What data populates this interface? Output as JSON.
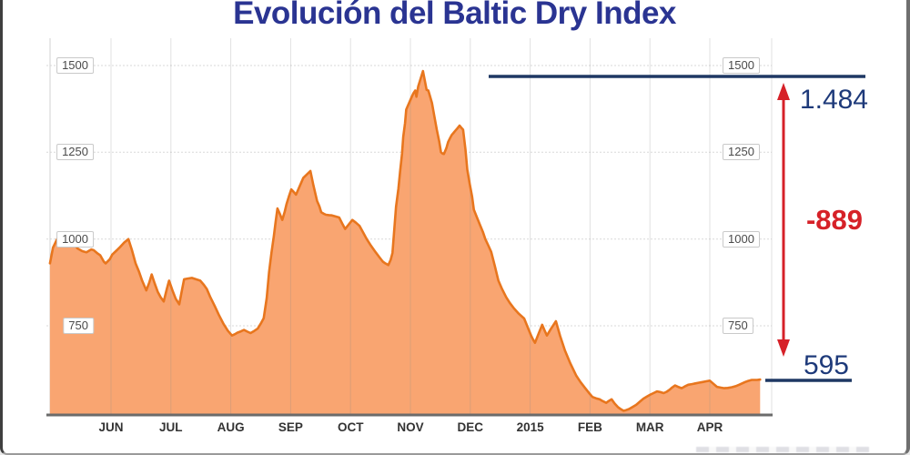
{
  "chart_data": {
    "type": "area",
    "title": "Evolución del Baltic Dry Index",
    "x_axis": {
      "labels": [
        "JUN",
        "JUL",
        "AUG",
        "SEP",
        "OCT",
        "NOV",
        "DEC",
        "2015",
        "FEB",
        "MAR",
        "APR"
      ]
    },
    "y_axis": {
      "ticks": [
        1500,
        1250,
        1000,
        750
      ],
      "range": [
        490,
        1570
      ],
      "tick_label_sides": "both"
    },
    "grid": true,
    "legend": "none",
    "series": [
      {
        "name": "Baltic Dry Index",
        "fill_color": "#F9A571",
        "line_color": "#E8761E",
        "points": [
          [
            -1.02,
            930
          ],
          [
            -0.97,
            975
          ],
          [
            -0.9,
            1000
          ],
          [
            -0.85,
            1012
          ],
          [
            -0.76,
            1008
          ],
          [
            -0.71,
            1005
          ],
          [
            -0.62,
            988
          ],
          [
            -0.56,
            973
          ],
          [
            -0.48,
            965
          ],
          [
            -0.41,
            962
          ],
          [
            -0.33,
            970
          ],
          [
            -0.29,
            968
          ],
          [
            -0.22,
            958
          ],
          [
            -0.18,
            953
          ],
          [
            -0.12,
            935
          ],
          [
            -0.09,
            930
          ],
          [
            -0.02,
            942
          ],
          [
            0.02,
            955
          ],
          [
            0.08,
            965
          ],
          [
            0.14,
            975
          ],
          [
            0.22,
            990
          ],
          [
            0.29,
            1000
          ],
          [
            0.35,
            968
          ],
          [
            0.41,
            930
          ],
          [
            0.47,
            905
          ],
          [
            0.52,
            880
          ],
          [
            0.59,
            852
          ],
          [
            0.64,
            875
          ],
          [
            0.68,
            898
          ],
          [
            0.73,
            872
          ],
          [
            0.78,
            848
          ],
          [
            0.83,
            832
          ],
          [
            0.88,
            820
          ],
          [
            0.93,
            855
          ],
          [
            0.97,
            880
          ],
          [
            1.03,
            850
          ],
          [
            1.08,
            828
          ],
          [
            1.14,
            812
          ],
          [
            1.18,
            848
          ],
          [
            1.22,
            884
          ],
          [
            1.28,
            886
          ],
          [
            1.35,
            888
          ],
          [
            1.42,
            884
          ],
          [
            1.49,
            880
          ],
          [
            1.55,
            868
          ],
          [
            1.6,
            856
          ],
          [
            1.66,
            832
          ],
          [
            1.73,
            808
          ],
          [
            1.8,
            782
          ],
          [
            1.88,
            755
          ],
          [
            1.95,
            736
          ],
          [
            2.02,
            722
          ],
          [
            2.07,
            726
          ],
          [
            2.11,
            730
          ],
          [
            2.17,
            734
          ],
          [
            2.22,
            738
          ],
          [
            2.28,
            733
          ],
          [
            2.33,
            729
          ],
          [
            2.39,
            735
          ],
          [
            2.45,
            742
          ],
          [
            2.5,
            756
          ],
          [
            2.55,
            772
          ],
          [
            2.6,
            830
          ],
          [
            2.64,
            905
          ],
          [
            2.68,
            960
          ],
          [
            2.72,
            1010
          ],
          [
            2.75,
            1050
          ],
          [
            2.78,
            1088
          ],
          [
            2.82,
            1072
          ],
          [
            2.86,
            1055
          ],
          [
            2.9,
            1078
          ],
          [
            2.93,
            1100
          ],
          [
            2.97,
            1122
          ],
          [
            3.01,
            1143
          ],
          [
            3.05,
            1136
          ],
          [
            3.09,
            1128
          ],
          [
            3.15,
            1152
          ],
          [
            3.21,
            1176
          ],
          [
            3.27,
            1186
          ],
          [
            3.33,
            1196
          ],
          [
            3.38,
            1155
          ],
          [
            3.44,
            1110
          ],
          [
            3.48,
            1094
          ],
          [
            3.51,
            1077
          ],
          [
            3.55,
            1073
          ],
          [
            3.59,
            1070
          ],
          [
            3.64,
            1069
          ],
          [
            3.69,
            1068
          ],
          [
            3.75,
            1065
          ],
          [
            3.81,
            1062
          ],
          [
            3.86,
            1045
          ],
          [
            3.91,
            1029
          ],
          [
            3.97,
            1042
          ],
          [
            4.03,
            1055
          ],
          [
            4.09,
            1047
          ],
          [
            4.15,
            1038
          ],
          [
            4.21,
            1019
          ],
          [
            4.27,
            1000
          ],
          [
            4.34,
            981
          ],
          [
            4.42,
            962
          ],
          [
            4.48,
            948
          ],
          [
            4.54,
            935
          ],
          [
            4.58,
            930
          ],
          [
            4.63,
            925
          ],
          [
            4.67,
            940
          ],
          [
            4.7,
            960
          ],
          [
            4.73,
            1025
          ],
          [
            4.76,
            1093
          ],
          [
            4.8,
            1145
          ],
          [
            4.83,
            1198
          ],
          [
            4.86,
            1246
          ],
          [
            4.88,
            1294
          ],
          [
            4.91,
            1334
          ],
          [
            4.93,
            1373
          ],
          [
            4.98,
            1393
          ],
          [
            5.03,
            1413
          ],
          [
            5.05,
            1420
          ],
          [
            5.08,
            1428
          ],
          [
            5.1,
            1410
          ],
          [
            5.13,
            1440
          ],
          [
            5.17,
            1462
          ],
          [
            5.21,
            1484
          ],
          [
            5.24,
            1457
          ],
          [
            5.27,
            1430
          ],
          [
            5.3,
            1428
          ],
          [
            5.33,
            1410
          ],
          [
            5.36,
            1392
          ],
          [
            5.4,
            1354
          ],
          [
            5.44,
            1315
          ],
          [
            5.48,
            1282
          ],
          [
            5.51,
            1250
          ],
          [
            5.54,
            1246
          ],
          [
            5.56,
            1245
          ],
          [
            5.6,
            1262
          ],
          [
            5.63,
            1280
          ],
          [
            5.66,
            1290
          ],
          [
            5.69,
            1300
          ],
          [
            5.72,
            1306
          ],
          [
            5.75,
            1312
          ],
          [
            5.79,
            1320
          ],
          [
            5.82,
            1327
          ],
          [
            5.85,
            1321
          ],
          [
            5.88,
            1315
          ],
          [
            5.92,
            1258
          ],
          [
            5.95,
            1200
          ],
          [
            5.97,
            1180
          ],
          [
            5.99,
            1160
          ],
          [
            6.03,
            1122
          ],
          [
            6.06,
            1085
          ],
          [
            6.11,
            1063
          ],
          [
            6.16,
            1042
          ],
          [
            6.21,
            1021
          ],
          [
            6.25,
            1000
          ],
          [
            6.3,
            982
          ],
          [
            6.35,
            963
          ],
          [
            6.41,
            922
          ],
          [
            6.47,
            880
          ],
          [
            6.53,
            856
          ],
          [
            6.6,
            832
          ],
          [
            6.66,
            816
          ],
          [
            6.73,
            800
          ],
          [
            6.81,
            785
          ],
          [
            6.9,
            771
          ],
          [
            6.96,
            745
          ],
          [
            7.02,
            720
          ],
          [
            7.05,
            710
          ],
          [
            7.08,
            701
          ],
          [
            7.14,
            727
          ],
          [
            7.2,
            753
          ],
          [
            7.24,
            737
          ],
          [
            7.28,
            722
          ],
          [
            7.35,
            742
          ],
          [
            7.43,
            763
          ],
          [
            7.5,
            721
          ],
          [
            7.58,
            679
          ],
          [
            7.67,
            642
          ],
          [
            7.77,
            606
          ],
          [
            7.84,
            588
          ],
          [
            7.92,
            570
          ],
          [
            7.98,
            557
          ],
          [
            8.04,
            545
          ],
          [
            8.1,
            541
          ],
          [
            8.16,
            538
          ],
          [
            8.21,
            533
          ],
          [
            8.27,
            528
          ],
          [
            8.31,
            533
          ],
          [
            8.36,
            538
          ],
          [
            8.41,
            526
          ],
          [
            8.47,
            515
          ],
          [
            8.51,
            510
          ],
          [
            8.56,
            505
          ],
          [
            8.6,
            507
          ],
          [
            8.65,
            510
          ],
          [
            8.71,
            516
          ],
          [
            8.77,
            522
          ],
          [
            8.83,
            531
          ],
          [
            8.89,
            540
          ],
          [
            8.95,
            546
          ],
          [
            9.01,
            552
          ],
          [
            9.06,
            556
          ],
          [
            9.12,
            561
          ],
          [
            9.17,
            559
          ],
          [
            9.23,
            556
          ],
          [
            9.28,
            560
          ],
          [
            9.33,
            566
          ],
          [
            9.37,
            572
          ],
          [
            9.42,
            578
          ],
          [
            9.47,
            574
          ],
          [
            9.53,
            570
          ],
          [
            9.58,
            575
          ],
          [
            9.64,
            580
          ],
          [
            9.7,
            582
          ],
          [
            9.76,
            584
          ],
          [
            9.82,
            586
          ],
          [
            9.88,
            588
          ],
          [
            9.94,
            590
          ],
          [
            10.0,
            592
          ],
          [
            10.06,
            583
          ],
          [
            10.12,
            574
          ],
          [
            10.18,
            572
          ],
          [
            10.24,
            570
          ],
          [
            10.3,
            571
          ],
          [
            10.37,
            573
          ],
          [
            10.43,
            576
          ],
          [
            10.49,
            580
          ],
          [
            10.54,
            584
          ],
          [
            10.59,
            588
          ],
          [
            10.64,
            591
          ],
          [
            10.7,
            594
          ],
          [
            10.74,
            594
          ],
          [
            10.79,
            594
          ],
          [
            10.84,
            595
          ]
        ]
      }
    ],
    "annotations": {
      "peak_label": "1.484",
      "change_label": "-889",
      "end_label": "595",
      "navy_color": "#1F3864",
      "red_color": "#D62128"
    }
  },
  "colors": {
    "title": "#2A3492",
    "grid": "#D9D9D9",
    "axis": "#6B6B6B",
    "tick_text": "#4A4A4A",
    "month_text": "#333333"
  }
}
